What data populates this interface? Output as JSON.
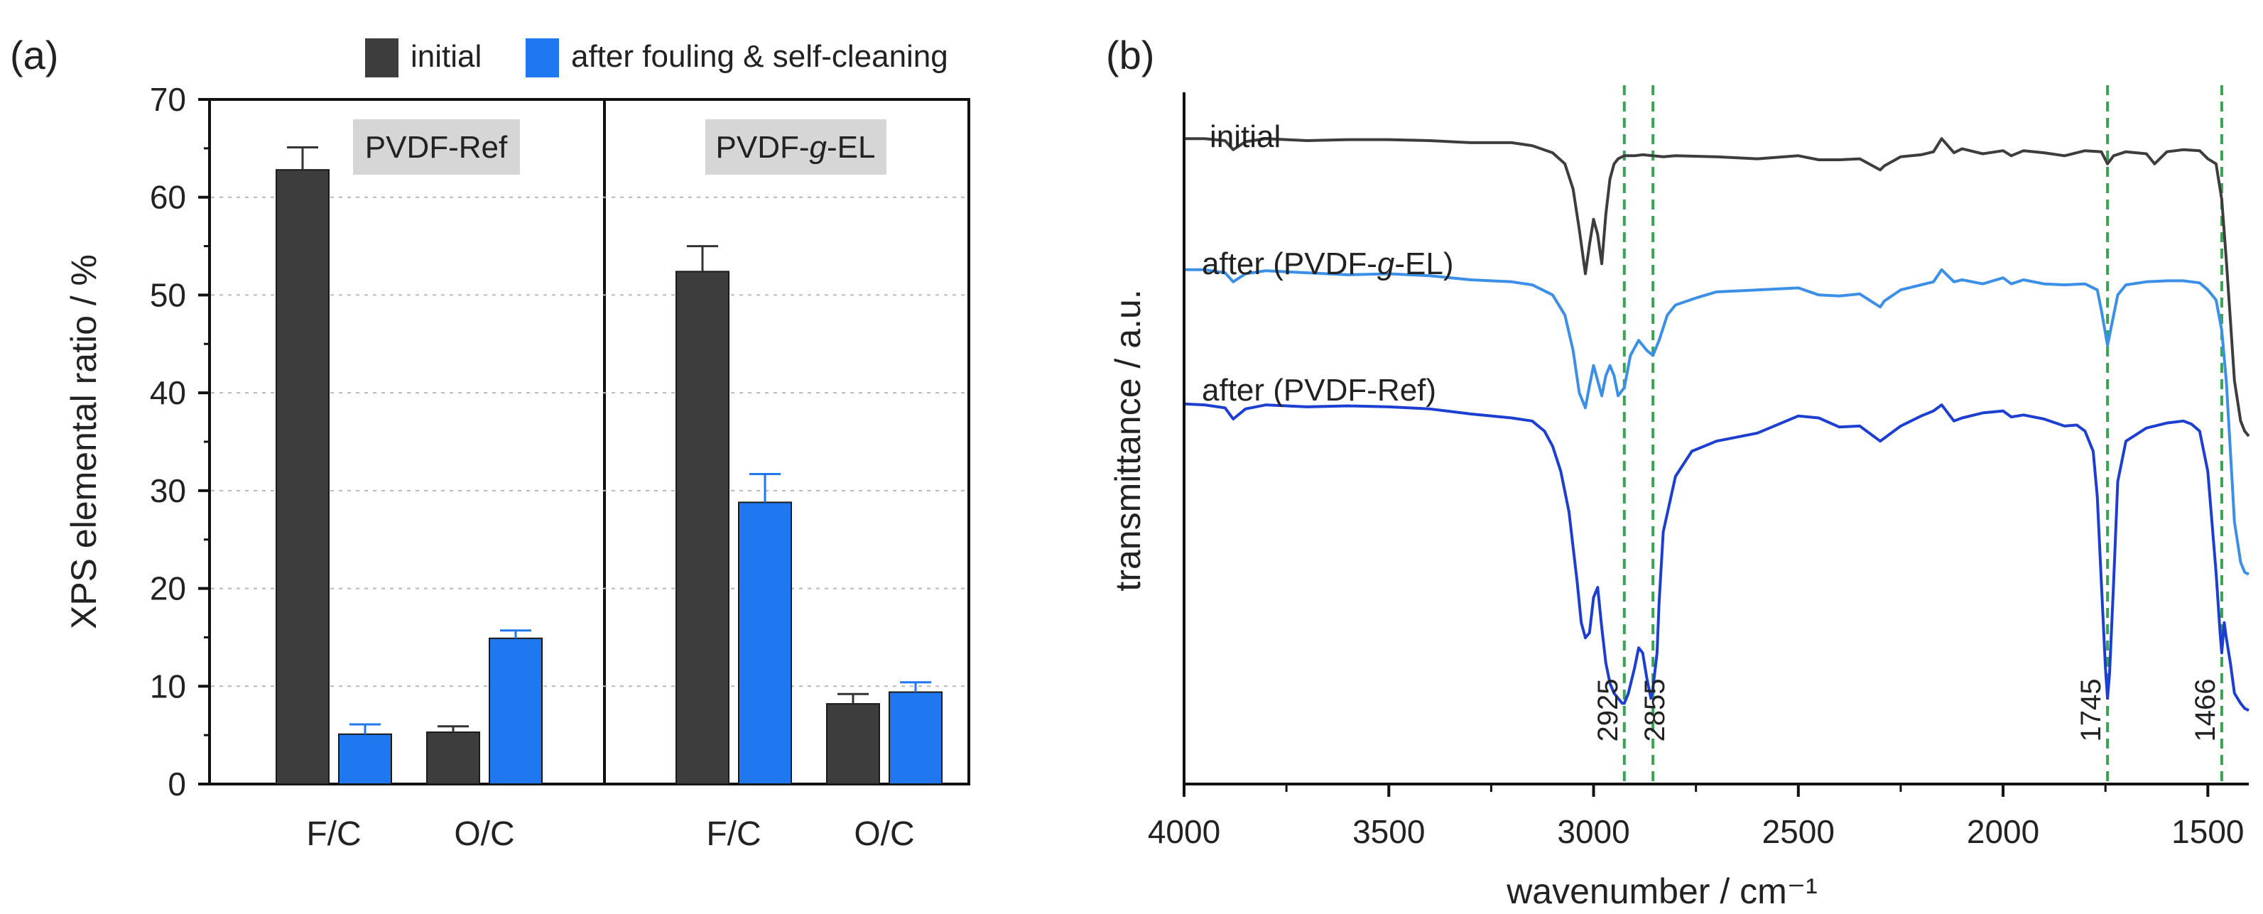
{
  "colors": {
    "initial": "#3d3d3d",
    "after": "#1f78ef",
    "errorbar": "#333333",
    "label_bg": "#d6d6d6",
    "ftir_initial": "#3d3d3d",
    "ftir_after_el": "#3b8fe6",
    "ftir_after_ref": "#1c3fd1",
    "dashed": "#3aa455"
  },
  "panel_a": {
    "panel_label": "(a)",
    "legend": {
      "initial": "initial",
      "after": "after fouling & self-cleaning"
    },
    "group_labels": {
      "ref": "PVDF-Ref",
      "el_prefix": "PVDF-",
      "el_italic": "g",
      "el_suffix": "-EL"
    }
  },
  "panel_b": {
    "panel_label": "(b)",
    "curve_labels": {
      "initial": "initial",
      "after_el_prefix": "after (PVDF-",
      "after_el_italic": "g",
      "after_el_suffix": "-EL)",
      "after_ref": "after (PVDF-Ref)"
    }
  },
  "chart_data": [
    {
      "type": "bar",
      "title": "",
      "xlabel": "",
      "ylabel": "XPS elemental ratio / %",
      "ylim": [
        0,
        70
      ],
      "yticks": [
        0,
        10,
        20,
        30,
        40,
        50,
        60,
        70
      ],
      "legend_position": "top",
      "groups": [
        {
          "name": "PVDF-Ref",
          "categories": [
            "F/C",
            "O/C"
          ],
          "series": [
            {
              "name": "initial",
              "values": [
                62.8,
                5.3
              ],
              "errors": [
                2.3,
                0.6
              ]
            },
            {
              "name": "after fouling & self-cleaning",
              "values": [
                5.1,
                14.9
              ],
              "errors": [
                1.0,
                0.8
              ]
            }
          ]
        },
        {
          "name": "PVDF-g-EL",
          "categories": [
            "F/C",
            "O/C"
          ],
          "series": [
            {
              "name": "initial",
              "values": [
                52.4,
                8.2
              ],
              "errors": [
                2.6,
                1.0
              ]
            },
            {
              "name": "after fouling & self-cleaning",
              "values": [
                28.8,
                9.4
              ],
              "errors": [
                2.9,
                1.0
              ]
            }
          ]
        }
      ]
    },
    {
      "type": "line",
      "title": "",
      "xlabel": "wavenumber / cm⁻¹",
      "ylabel": "transmittance / a.u.",
      "xlim": [
        4000,
        1400
      ],
      "xticks": [
        4000,
        3500,
        3000,
        2500,
        2000,
        1500
      ],
      "reference_lines": [
        2925,
        2855,
        1745,
        1466
      ],
      "series": [
        {
          "name": "initial",
          "x": [
            4000,
            3950,
            3900,
            3880,
            3850,
            3800,
            3700,
            3600,
            3500,
            3400,
            3300,
            3200,
            3150,
            3100,
            3070,
            3050,
            3035,
            3020,
            3010,
            3000,
            2990,
            2980,
            2970,
            2960,
            2950,
            2940,
            2925,
            2900,
            2880,
            2855,
            2830,
            2800,
            2700,
            2600,
            2500,
            2450,
            2400,
            2350,
            2300,
            2290,
            2250,
            2200,
            2170,
            2150,
            2120,
            2100,
            2050,
            2000,
            1980,
            1950,
            1900,
            1850,
            1800,
            1760,
            1745,
            1730,
            1700,
            1650,
            1630,
            1600,
            1560,
            1520,
            1500,
            1480,
            1466,
            1455,
            1445,
            1435,
            1420,
            1410,
            1400
          ],
          "y": [
            64.0,
            64.0,
            63.8,
            62.9,
            63.7,
            64.0,
            63.8,
            63.9,
            63.9,
            63.8,
            63.6,
            63.6,
            63.3,
            62.6,
            61.5,
            59.0,
            55.0,
            50.6,
            53.5,
            56.0,
            54.5,
            51.6,
            56.5,
            60.0,
            61.5,
            62.0,
            62.3,
            62.3,
            62.4,
            62.3,
            62.2,
            62.3,
            62.2,
            62.0,
            62.3,
            61.9,
            61.9,
            62.0,
            60.9,
            61.3,
            62.2,
            62.4,
            62.7,
            64.0,
            62.6,
            63.0,
            62.5,
            62.8,
            62.3,
            62.8,
            62.6,
            62.3,
            62.8,
            62.7,
            61.5,
            62.3,
            62.7,
            62.5,
            61.5,
            62.7,
            62.9,
            62.8,
            62.0,
            61.5,
            58.0,
            52.0,
            46.0,
            40.0,
            36.0,
            35.0,
            34.5
          ]
        },
        {
          "name": "after (PVDF-g-EL)",
          "x": [
            4000,
            3950,
            3900,
            3880,
            3850,
            3800,
            3700,
            3600,
            3500,
            3400,
            3300,
            3200,
            3150,
            3100,
            3070,
            3050,
            3035,
            3020,
            3010,
            3000,
            2990,
            2980,
            2970,
            2960,
            2950,
            2940,
            2925,
            2910,
            2890,
            2870,
            2855,
            2840,
            2820,
            2800,
            2750,
            2700,
            2600,
            2500,
            2450,
            2400,
            2350,
            2300,
            2290,
            2250,
            2200,
            2170,
            2150,
            2120,
            2100,
            2050,
            2000,
            1980,
            1950,
            1900,
            1850,
            1800,
            1770,
            1760,
            1745,
            1730,
            1720,
            1700,
            1650,
            1600,
            1560,
            1520,
            1500,
            1480,
            1466,
            1455,
            1445,
            1435,
            1420,
            1410,
            1400
          ],
          "y": [
            51.0,
            51.0,
            50.7,
            49.8,
            50.6,
            50.9,
            50.7,
            50.5,
            50.6,
            50.4,
            50.0,
            49.8,
            49.5,
            48.5,
            46.5,
            43.0,
            38.8,
            37.3,
            39.5,
            41.5,
            40.0,
            38.5,
            40.5,
            41.5,
            40.5,
            38.5,
            39.3,
            42.5,
            44.0,
            43.0,
            42.5,
            44.0,
            46.5,
            47.5,
            48.2,
            48.8,
            49.0,
            49.2,
            48.5,
            48.4,
            48.6,
            47.3,
            47.9,
            49.0,
            49.5,
            49.8,
            51.0,
            49.8,
            50.0,
            49.6,
            50.2,
            49.6,
            50.0,
            49.6,
            49.5,
            49.6,
            49.0,
            47.0,
            43.5,
            46.5,
            48.5,
            49.5,
            49.8,
            49.9,
            49.9,
            49.7,
            49.0,
            48.0,
            45.0,
            40.0,
            33.0,
            26.0,
            22.0,
            21.0,
            20.8
          ]
        },
        {
          "name": "after (PVDF-Ref)",
          "x": [
            4000,
            3950,
            3900,
            3880,
            3850,
            3800,
            3700,
            3600,
            3500,
            3400,
            3300,
            3200,
            3150,
            3120,
            3100,
            3080,
            3060,
            3040,
            3030,
            3020,
            3010,
            3000,
            2990,
            2980,
            2970,
            2960,
            2950,
            2940,
            2930,
            2925,
            2915,
            2900,
            2890,
            2880,
            2870,
            2860,
            2855,
            2845,
            2840,
            2830,
            2800,
            2760,
            2700,
            2600,
            2500,
            2450,
            2400,
            2350,
            2300,
            2290,
            2250,
            2200,
            2170,
            2150,
            2120,
            2100,
            2050,
            2000,
            1980,
            1950,
            1900,
            1850,
            1820,
            1800,
            1780,
            1770,
            1760,
            1750,
            1745,
            1740,
            1730,
            1720,
            1700,
            1650,
            1600,
            1560,
            1540,
            1520,
            1500,
            1490,
            1480,
            1470,
            1466,
            1460,
            1455,
            1445,
            1435,
            1420,
            1410,
            1400
          ],
          "y": [
            37.7,
            37.6,
            37.3,
            36.2,
            37.2,
            37.6,
            37.4,
            37.5,
            37.4,
            37.2,
            36.7,
            36.3,
            36.0,
            35.0,
            33.5,
            31.0,
            27.0,
            20.0,
            16.0,
            14.5,
            15.0,
            18.5,
            19.5,
            15.5,
            12.0,
            10.0,
            9.0,
            8.5,
            8.0,
            8.0,
            9.0,
            11.5,
            13.5,
            13.0,
            10.5,
            8.5,
            9.5,
            13.0,
            18.0,
            25.0,
            30.5,
            33.0,
            34.0,
            34.8,
            36.5,
            36.3,
            35.4,
            35.5,
            34.0,
            34.3,
            35.5,
            36.5,
            37.0,
            37.6,
            36.0,
            36.3,
            36.8,
            37.0,
            36.4,
            36.6,
            36.2,
            35.5,
            35.6,
            35.0,
            33.0,
            28.5,
            20.0,
            11.5,
            8.5,
            11.0,
            20.0,
            30.0,
            34.0,
            35.3,
            35.8,
            36.0,
            35.7,
            35.0,
            31.0,
            26.0,
            21.0,
            15.0,
            13.0,
            16.0,
            14.5,
            12.0,
            9.0,
            8.0,
            7.5,
            7.3
          ]
        }
      ]
    }
  ]
}
